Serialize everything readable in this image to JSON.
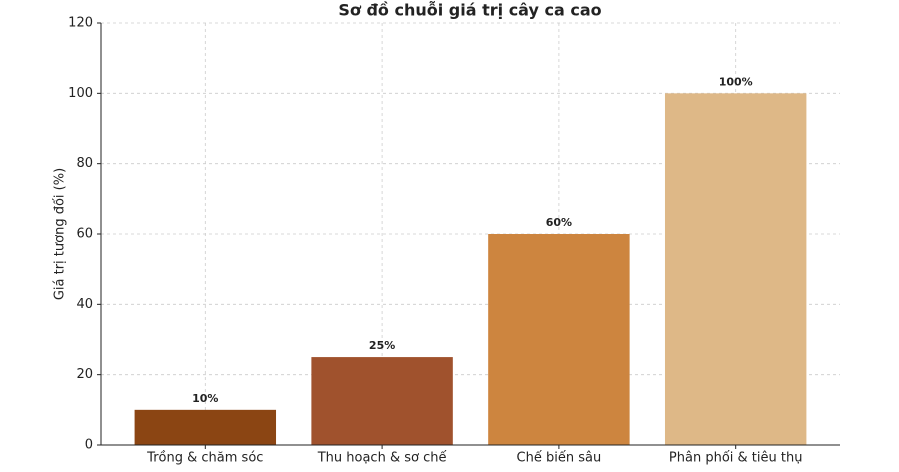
{
  "chart_data": {
    "type": "bar",
    "title": "Sơ đồ chuỗi giá trị cây ca cao",
    "ylabel": "Giá trị tương đối (%)",
    "categories": [
      "Trồng & chăm sóc",
      "Thu hoạch & sơ chế",
      "Chế biến sâu",
      "Phân phối & tiêu thụ"
    ],
    "values": [
      10,
      25,
      60,
      100
    ],
    "value_labels": [
      "10%",
      "25%",
      "60%",
      "100%"
    ],
    "colors": [
      "#8b4513",
      "#a0522d",
      "#cd853f",
      "#deb887"
    ],
    "ylim": [
      0,
      120
    ],
    "yticks": [
      0,
      20,
      40,
      60,
      80,
      100,
      120
    ],
    "grid": true
  }
}
